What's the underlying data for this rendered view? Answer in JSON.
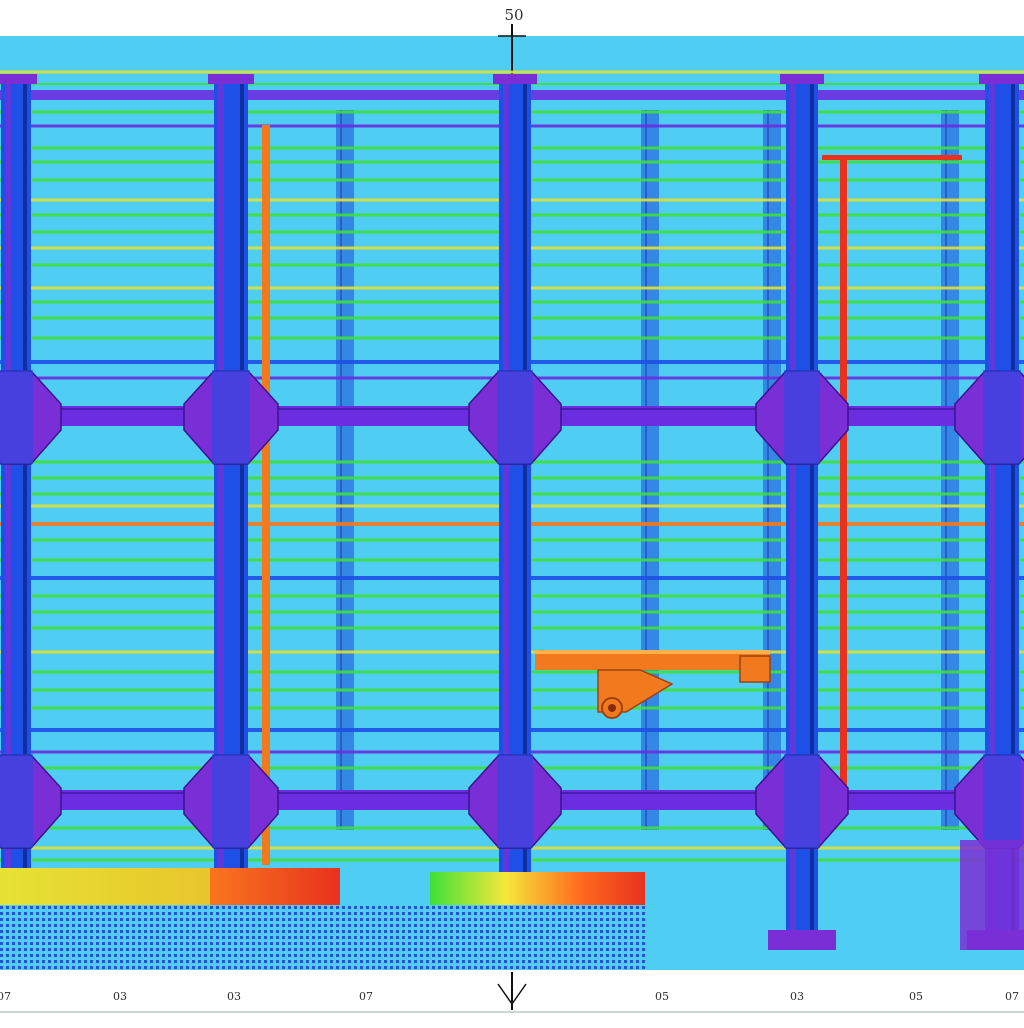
{
  "drawing": {
    "top_dimension": "50",
    "bottom_labels": [
      "07",
      "03",
      "03",
      "07",
      "05",
      "03",
      "05",
      "07"
    ]
  },
  "colors": {
    "background_field": "#4fcdf2",
    "column_blue": "#1e4fe6",
    "column_purple": "#7a2fd6",
    "beam_purple": "#6a2ee0",
    "beam_green": "#3fe03a",
    "beam_yellow": "#e0e033",
    "accent_red": "#e8321e",
    "accent_orange": "#f27a1e"
  }
}
